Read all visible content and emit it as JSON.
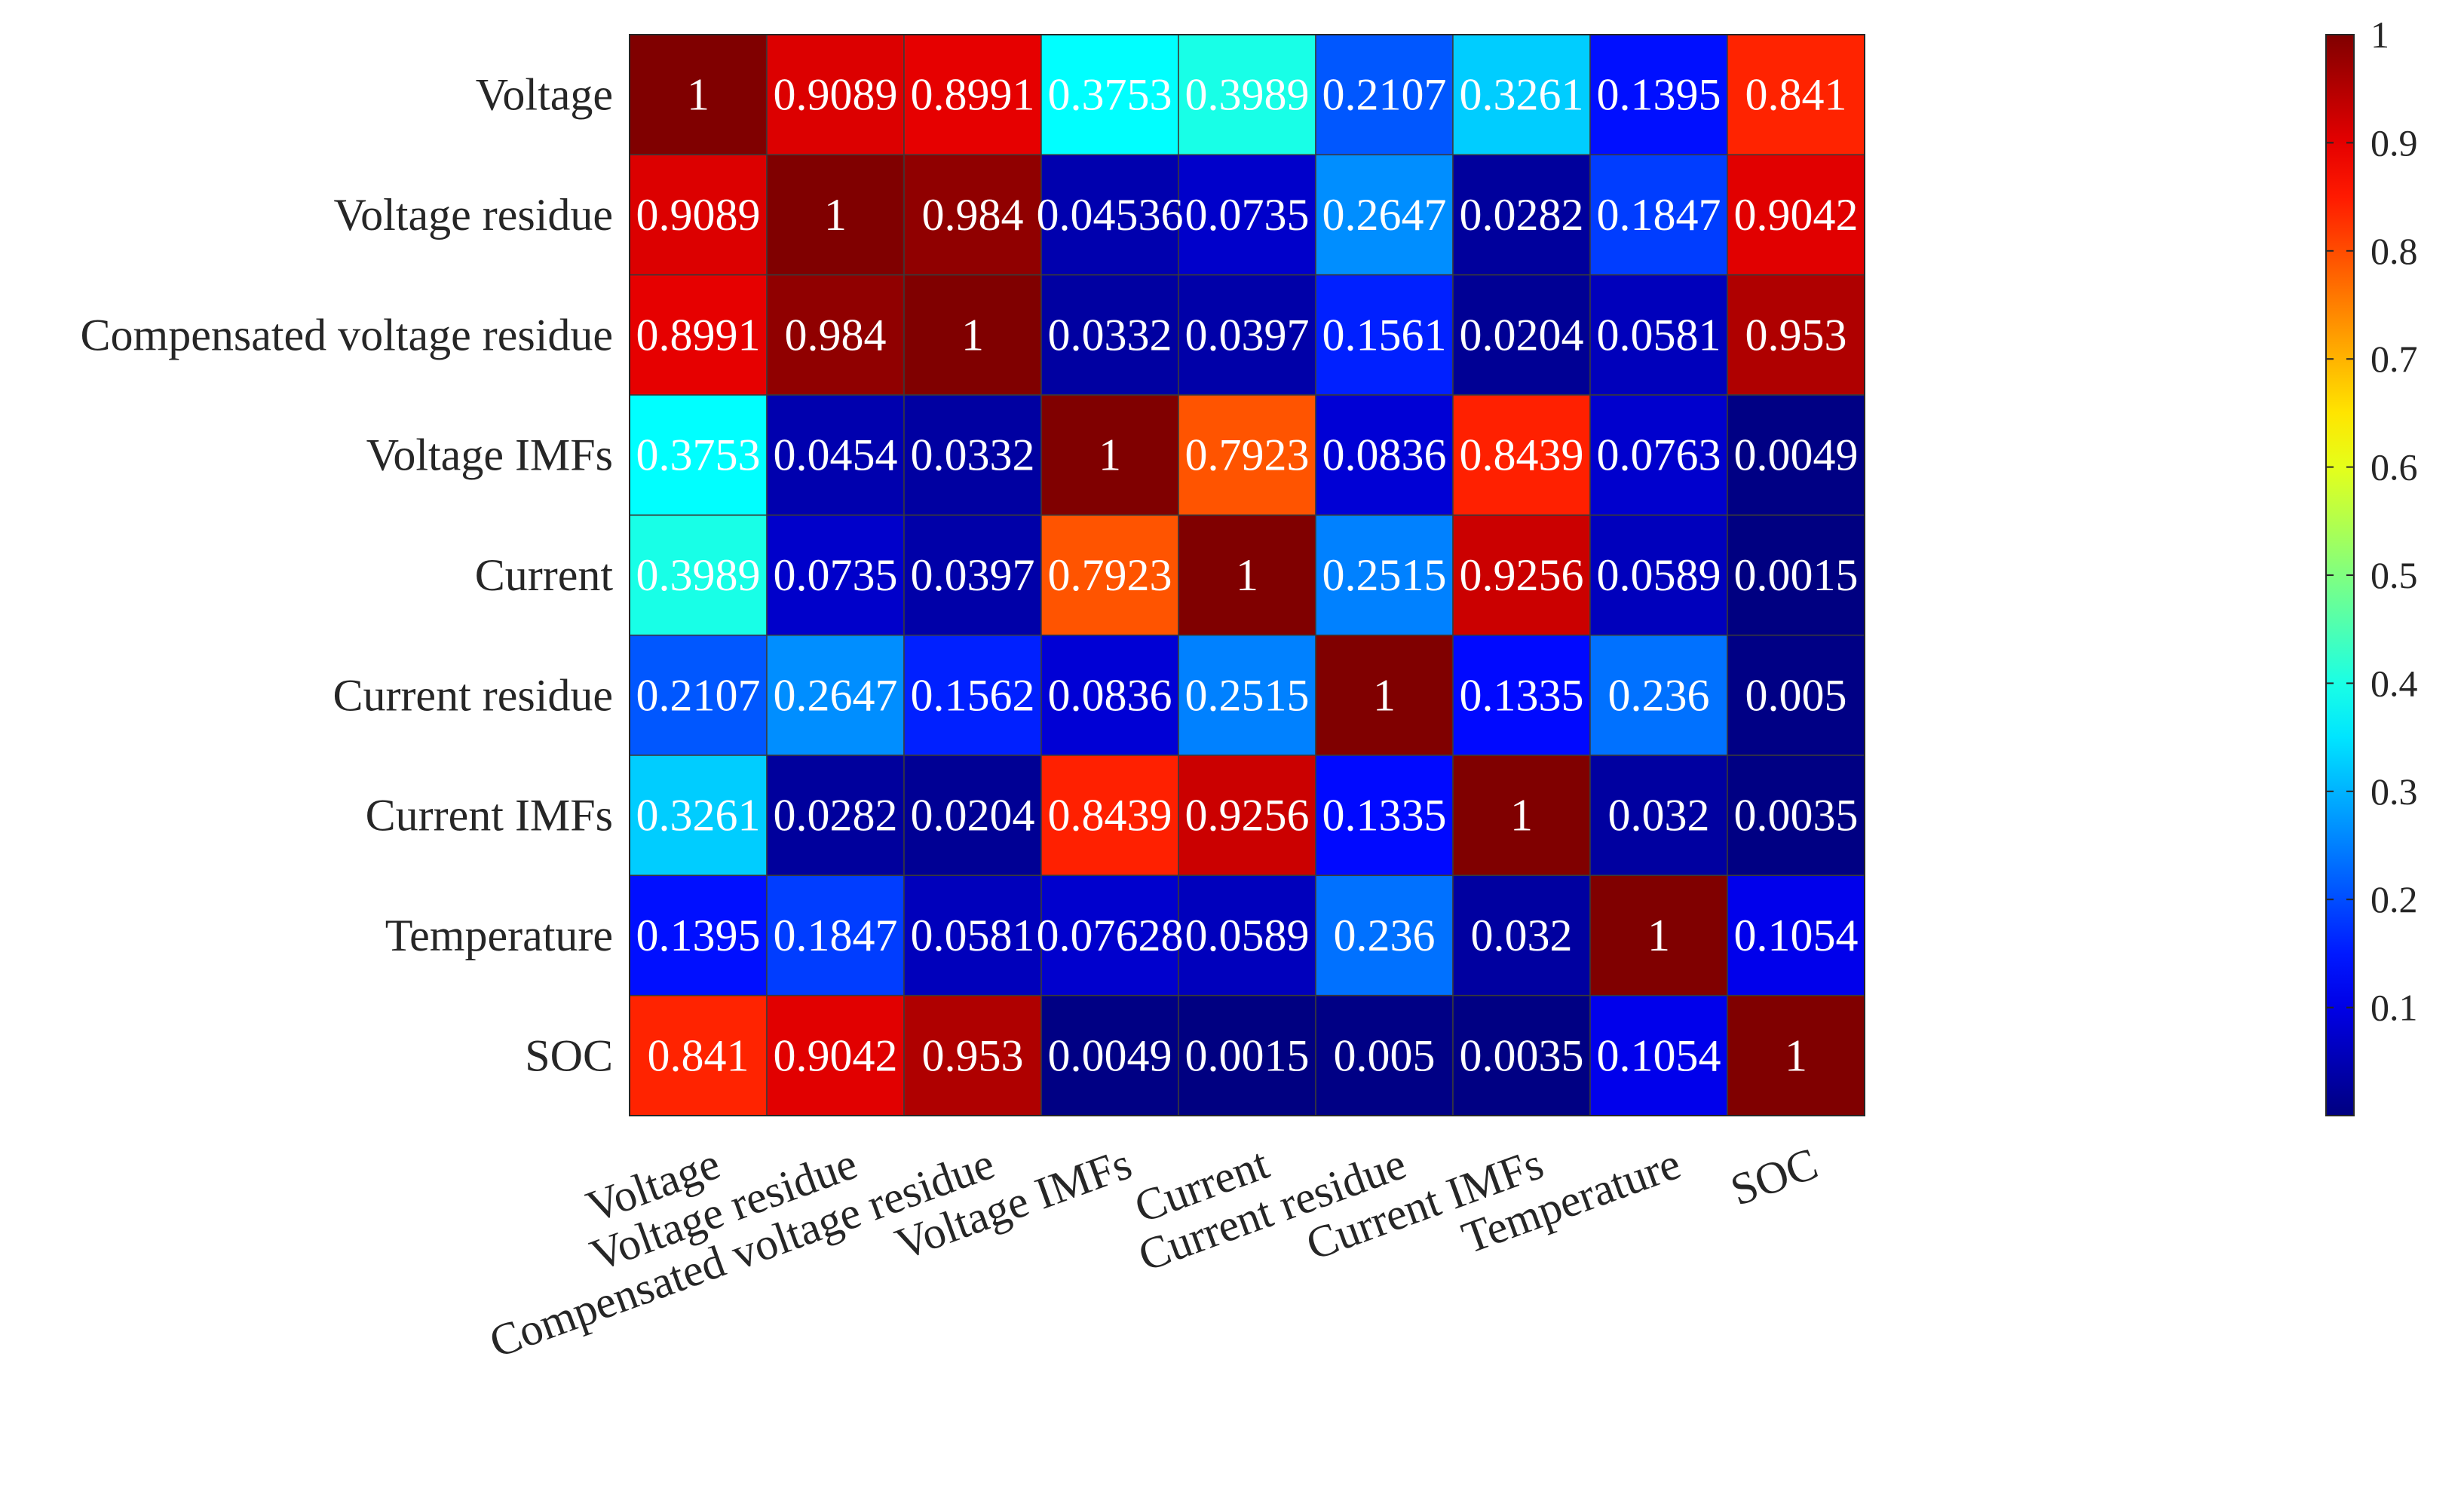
{
  "chart_data": {
    "type": "heatmap",
    "title": "",
    "row_labels": [
      "Voltage",
      "Voltage residue",
      "Compensated voltage residue",
      "Voltage IMFs",
      "Current",
      "Current residue",
      "Current IMFs",
      "Temperature",
      "SOC"
    ],
    "col_labels": [
      "Voltage",
      "Voltage residue",
      "Compensated voltage residue",
      "Voltage IMFs",
      "Current",
      "Current residue",
      "Current IMFs",
      "Temperature",
      "SOC"
    ],
    "values": [
      [
        1,
        0.9089,
        0.8991,
        0.3753,
        0.3989,
        0.2107,
        0.3261,
        0.1395,
        0.841
      ],
      [
        0.9089,
        1,
        0.984,
        0.04536,
        0.0735,
        0.2647,
        0.0282,
        0.1847,
        0.9042
      ],
      [
        0.8991,
        0.984,
        1,
        0.0332,
        0.0397,
        0.1561,
        0.0204,
        0.0581,
        0.953
      ],
      [
        0.3753,
        0.0454,
        0.0332,
        1,
        0.7923,
        0.0836,
        0.8439,
        0.0763,
        0.0049
      ],
      [
        0.3989,
        0.0735,
        0.0397,
        0.7923,
        1,
        0.2515,
        0.9256,
        0.0589,
        0.0015
      ],
      [
        0.2107,
        0.2647,
        0.1562,
        0.0836,
        0.2515,
        1,
        0.1335,
        0.236,
        0.005
      ],
      [
        0.3261,
        0.0282,
        0.0204,
        0.8439,
        0.9256,
        0.1335,
        1,
        0.032,
        0.0035
      ],
      [
        0.1395,
        0.1847,
        0.0581,
        0.07628,
        0.0589,
        0.236,
        0.032,
        1,
        0.1054
      ],
      [
        0.841,
        0.9042,
        0.953,
        0.0049,
        0.0015,
        0.005,
        0.0035,
        0.1054,
        1
      ]
    ],
    "colorbar": {
      "colormap": "jet",
      "range": [
        0,
        1
      ],
      "ticks": [
        0.1,
        0.2,
        0.3,
        0.4,
        0.5,
        0.6,
        0.7,
        0.8,
        0.9,
        1
      ],
      "tick_labels": [
        "0.1",
        "0.2",
        "0.3",
        "0.4",
        "0.5",
        "0.6",
        "0.7",
        "0.8",
        "0.9",
        "1"
      ]
    }
  }
}
